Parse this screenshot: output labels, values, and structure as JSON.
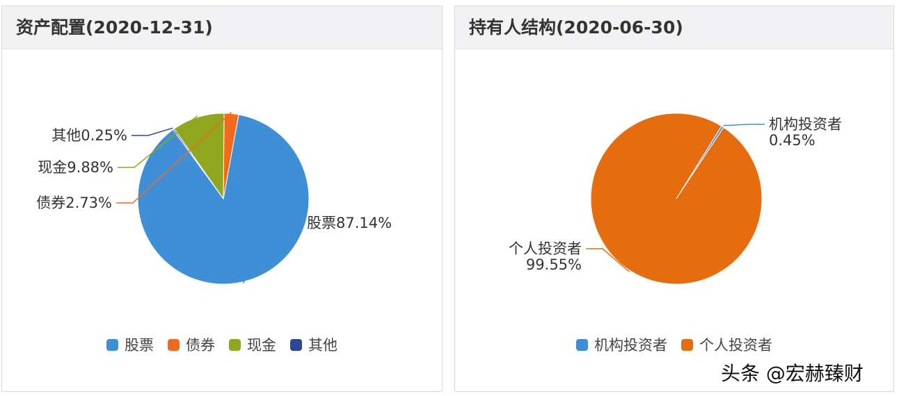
{
  "chart_data": [
    {
      "type": "pie",
      "title": "资产配置(2020-12-31)",
      "slices": [
        {
          "name": "股票",
          "value": 87.14,
          "color": "#3f8fd6",
          "label": "股票87.14%"
        },
        {
          "name": "债券",
          "value": 2.73,
          "color": "#f26a1b",
          "label": "债券2.73%"
        },
        {
          "name": "现金",
          "value": 9.88,
          "color": "#8fa61e",
          "label": "现金9.88%"
        },
        {
          "name": "其他",
          "value": 0.25,
          "color": "#2f4596",
          "label": "其他0.25%"
        }
      ],
      "legend": [
        "股票",
        "债券",
        "现金",
        "其他"
      ],
      "legend_position": "bottom"
    },
    {
      "type": "pie",
      "title": "持有人结构(2020-06-30)",
      "slices": [
        {
          "name": "机构投资者",
          "value": 0.45,
          "color": "#3f8fd6",
          "label": [
            "机构投资者",
            "0.45%"
          ]
        },
        {
          "name": "个人投资者",
          "value": 99.55,
          "color": "#e66d0f",
          "label": [
            "个人投资者",
            "99.55%"
          ]
        }
      ],
      "legend": [
        "机构投资者",
        "个人投资者"
      ],
      "legend_position": "bottom"
    }
  ],
  "watermark": "头条 @宏赫臻财"
}
